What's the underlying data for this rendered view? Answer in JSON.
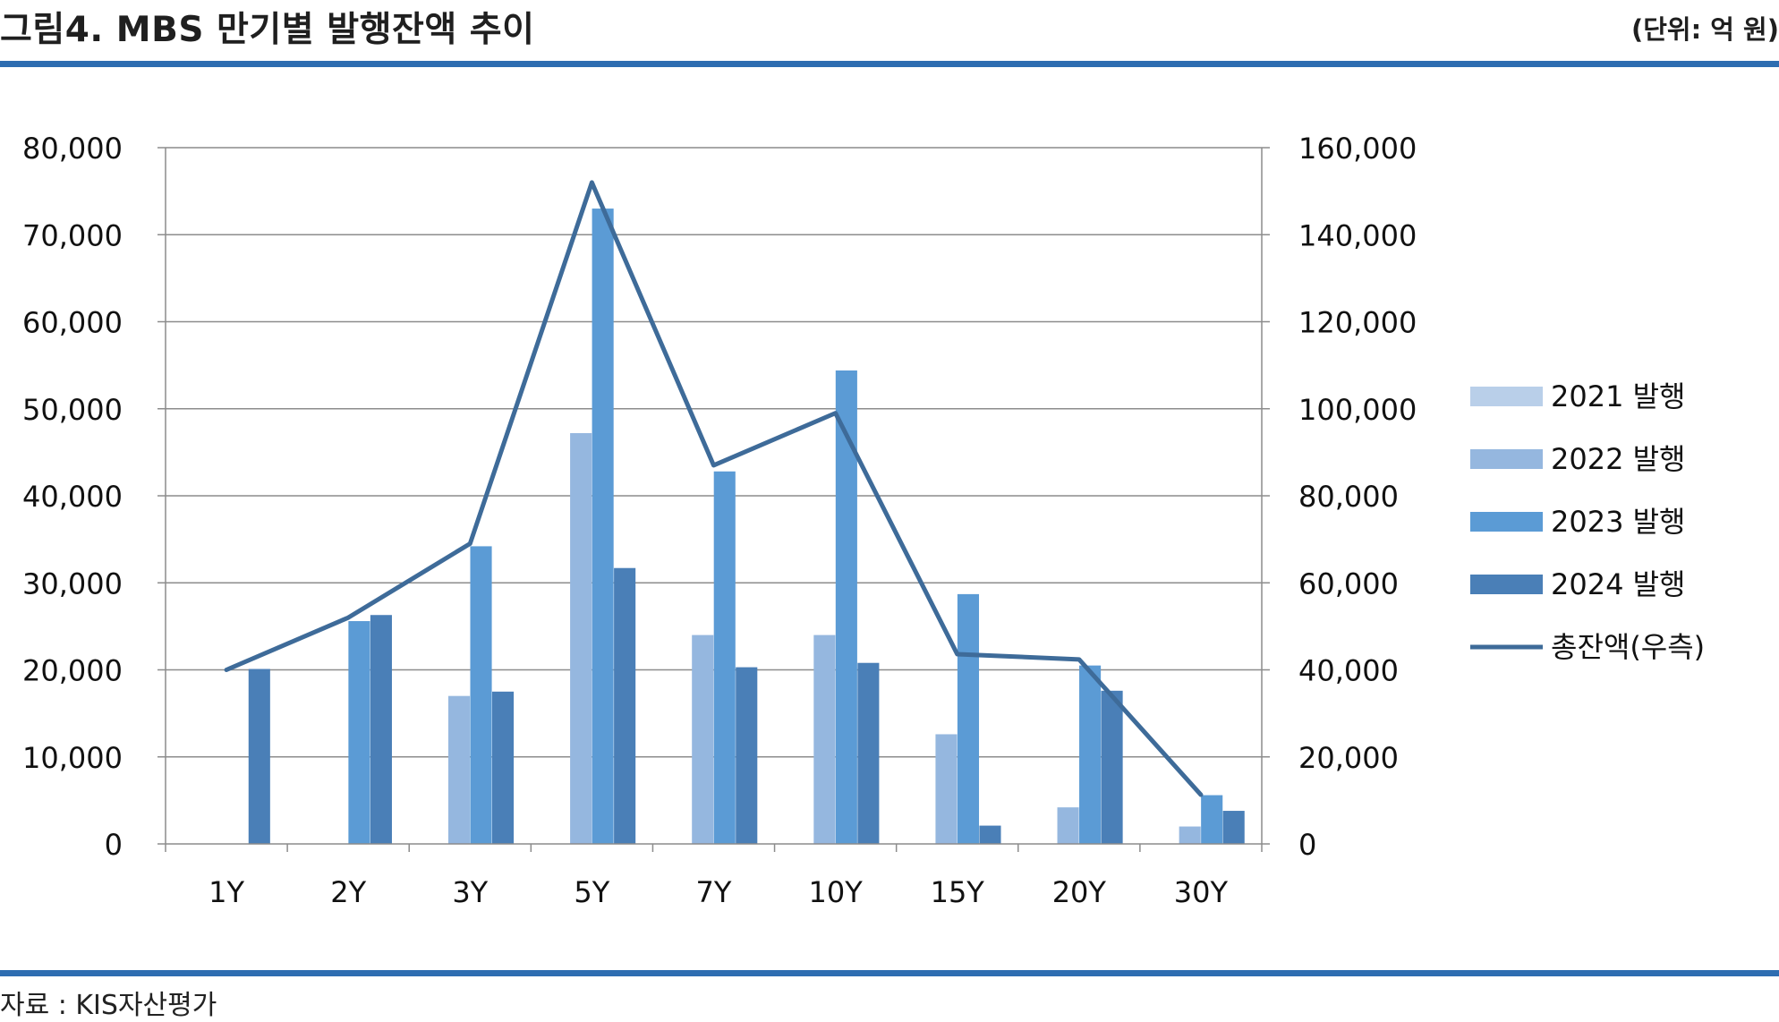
{
  "header": {
    "title": "그림4. MBS 만기별 발행잔액 추이",
    "unit": "(단위: 억 원)"
  },
  "footer": {
    "source": "자료 : KIS자산평가"
  },
  "chart_data": {
    "type": "bar",
    "categories": [
      "1Y",
      "2Y",
      "3Y",
      "5Y",
      "7Y",
      "10Y",
      "15Y",
      "20Y",
      "30Y"
    ],
    "series": [
      {
        "name": "2021 발행",
        "kind": "bar",
        "axis": "left",
        "color": "#b9cfe9",
        "values": [
          0,
          0,
          0,
          0,
          0,
          0,
          0,
          0,
          0
        ]
      },
      {
        "name": "2022 발행",
        "kind": "bar",
        "axis": "left",
        "color": "#95b7df",
        "values": [
          0,
          0,
          17000,
          47200,
          24000,
          24000,
          12600,
          4200,
          2000
        ]
      },
      {
        "name": "2023 발행",
        "kind": "bar",
        "axis": "left",
        "color": "#5b9bd5",
        "values": [
          0,
          25600,
          34200,
          73000,
          42800,
          54400,
          28700,
          20500,
          5600
        ]
      },
      {
        "name": "2024 발행",
        "kind": "bar",
        "axis": "left",
        "color": "#4a7fb7",
        "values": [
          20100,
          26300,
          17500,
          31700,
          20300,
          20800,
          2100,
          17600,
          3800
        ]
      },
      {
        "name": "총잔액(우측)",
        "kind": "line",
        "axis": "right",
        "color": "#3e6b99",
        "values": [
          40000,
          52000,
          69000,
          152000,
          87000,
          99000,
          43600,
          42400,
          11300
        ]
      }
    ],
    "y_left": {
      "min": 0,
      "max": 80000,
      "ticks": [
        "0",
        "10,000",
        "20,000",
        "30,000",
        "40,000",
        "50,000",
        "60,000",
        "70,000",
        "80,000"
      ]
    },
    "y_right": {
      "min": 0,
      "max": 160000,
      "ticks": [
        "0",
        "20,000",
        "40,000",
        "60,000",
        "80,000",
        "100,000",
        "120,000",
        "140,000",
        "160,000"
      ]
    },
    "grid": true,
    "legend": "right"
  }
}
